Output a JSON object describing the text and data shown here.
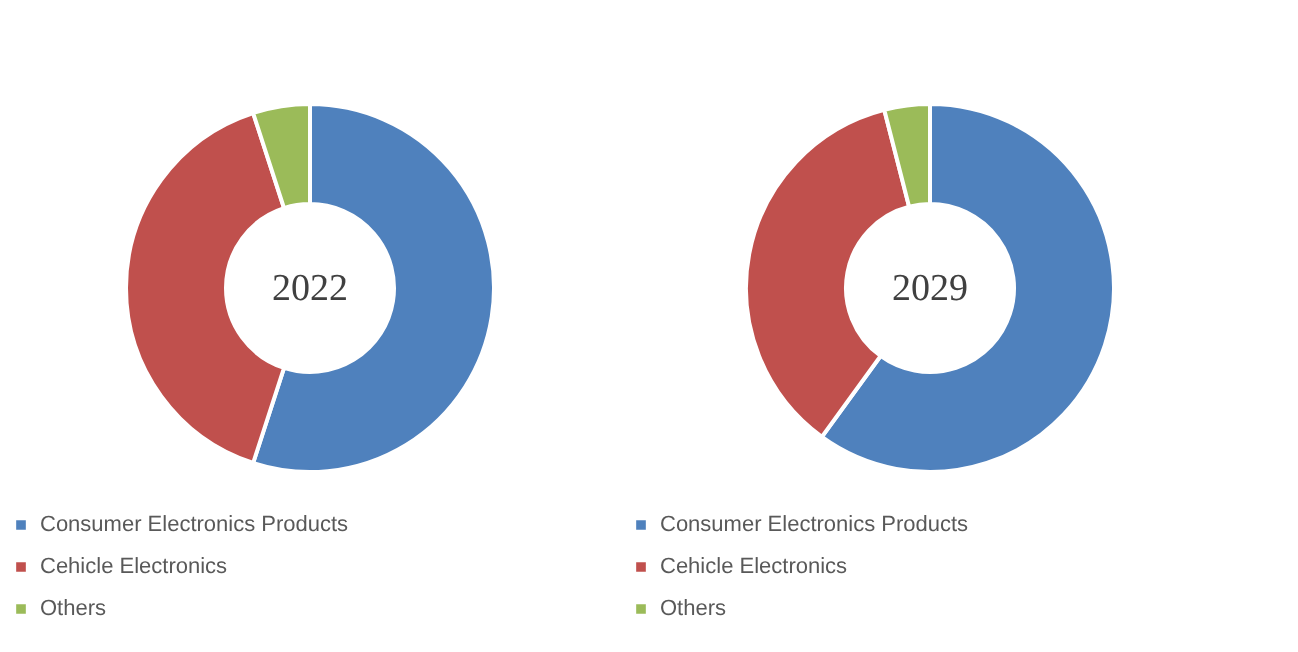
{
  "chart_data": [
    {
      "type": "donut",
      "title": "2022",
      "categories": [
        "Consumer Electronics Products",
        "Cehicle Electronics",
        "Others"
      ],
      "values": [
        55,
        40,
        5
      ],
      "colors": [
        "#4f81bd",
        "#c0504d",
        "#9bbb59"
      ],
      "legend": "bottom"
    },
    {
      "type": "donut",
      "title": "2029",
      "categories": [
        "Consumer Electronics Products",
        "Cehicle Electronics",
        "Others"
      ],
      "values": [
        60,
        36,
        4
      ],
      "colors": [
        "#4f81bd",
        "#c0504d",
        "#9bbb59"
      ],
      "legend": "bottom"
    }
  ]
}
